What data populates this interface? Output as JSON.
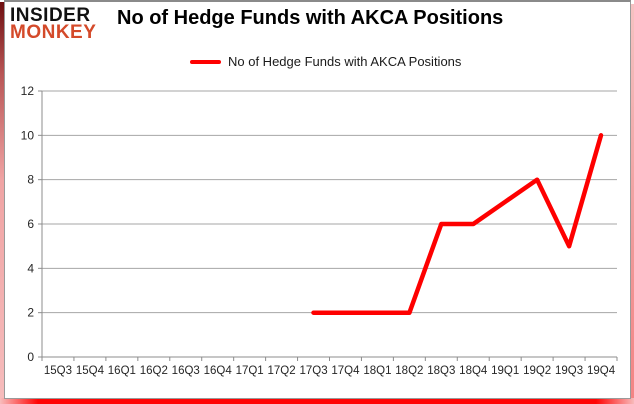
{
  "logo": {
    "line1": "INSIDER",
    "line2": "MONKEY",
    "line1_color": "#111111",
    "line2_color": "#d44a2a"
  },
  "header": {
    "title": "No of Hedge Funds with AKCA Positions"
  },
  "legend": {
    "label": "No of Hedge Funds with AKCA Positions"
  },
  "colors": {
    "line": "#fe0000",
    "grid": "#a6a6a6",
    "axis": "#8c8c8c",
    "tick_text": "#262626",
    "border_bottom": "#ff0000",
    "border_side_pink": "#f2a0a0"
  },
  "chart_data": {
    "type": "line",
    "title": "No of Hedge Funds with AKCA Positions",
    "categories": [
      "15Q3",
      "15Q4",
      "16Q1",
      "16Q2",
      "16Q3",
      "16Q4",
      "17Q1",
      "17Q2",
      "17Q3",
      "17Q4",
      "18Q1",
      "18Q2",
      "18Q3",
      "18Q4",
      "19Q1",
      "19Q2",
      "19Q3",
      "19Q4"
    ],
    "series": [
      {
        "name": "No of Hedge Funds with AKCA Positions",
        "color": "#fe0000",
        "values": [
          null,
          null,
          null,
          null,
          null,
          null,
          null,
          null,
          2,
          2,
          2,
          2,
          6,
          6,
          7,
          8,
          5,
          10
        ]
      }
    ],
    "xlabel": "",
    "ylabel": "",
    "ylim": [
      0,
      12
    ],
    "yticks": [
      0,
      2,
      4,
      6,
      8,
      10,
      12
    ],
    "grid": true,
    "legend_position": "top-center"
  }
}
